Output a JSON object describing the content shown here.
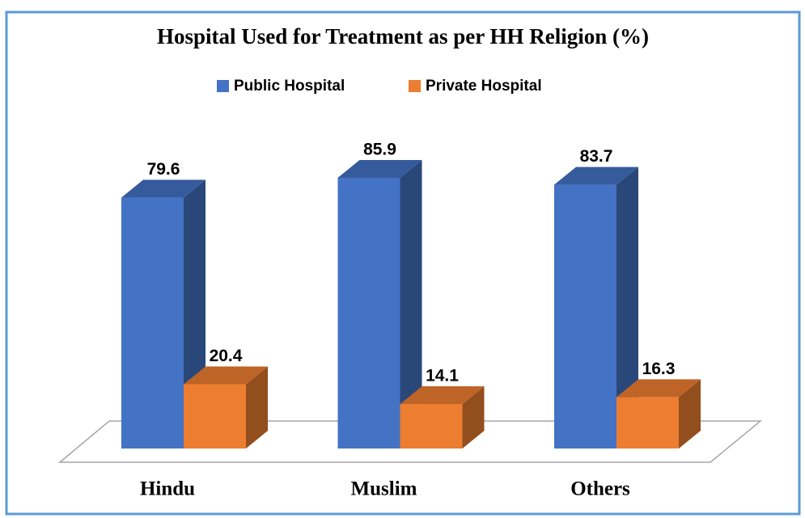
{
  "chart_data": {
    "type": "bar3d",
    "title": "Hospital Used for Treatment as per HH Religion (%)",
    "categories": [
      "Hindu",
      "Muslim",
      "Others"
    ],
    "series": [
      {
        "name": "Public Hospital",
        "color": "#4472c4",
        "values": [
          79.6,
          85.9,
          83.7
        ]
      },
      {
        "name": "Private Hospital",
        "color": "#ed7d31",
        "values": [
          20.4,
          14.1,
          16.3
        ]
      }
    ]
  }
}
